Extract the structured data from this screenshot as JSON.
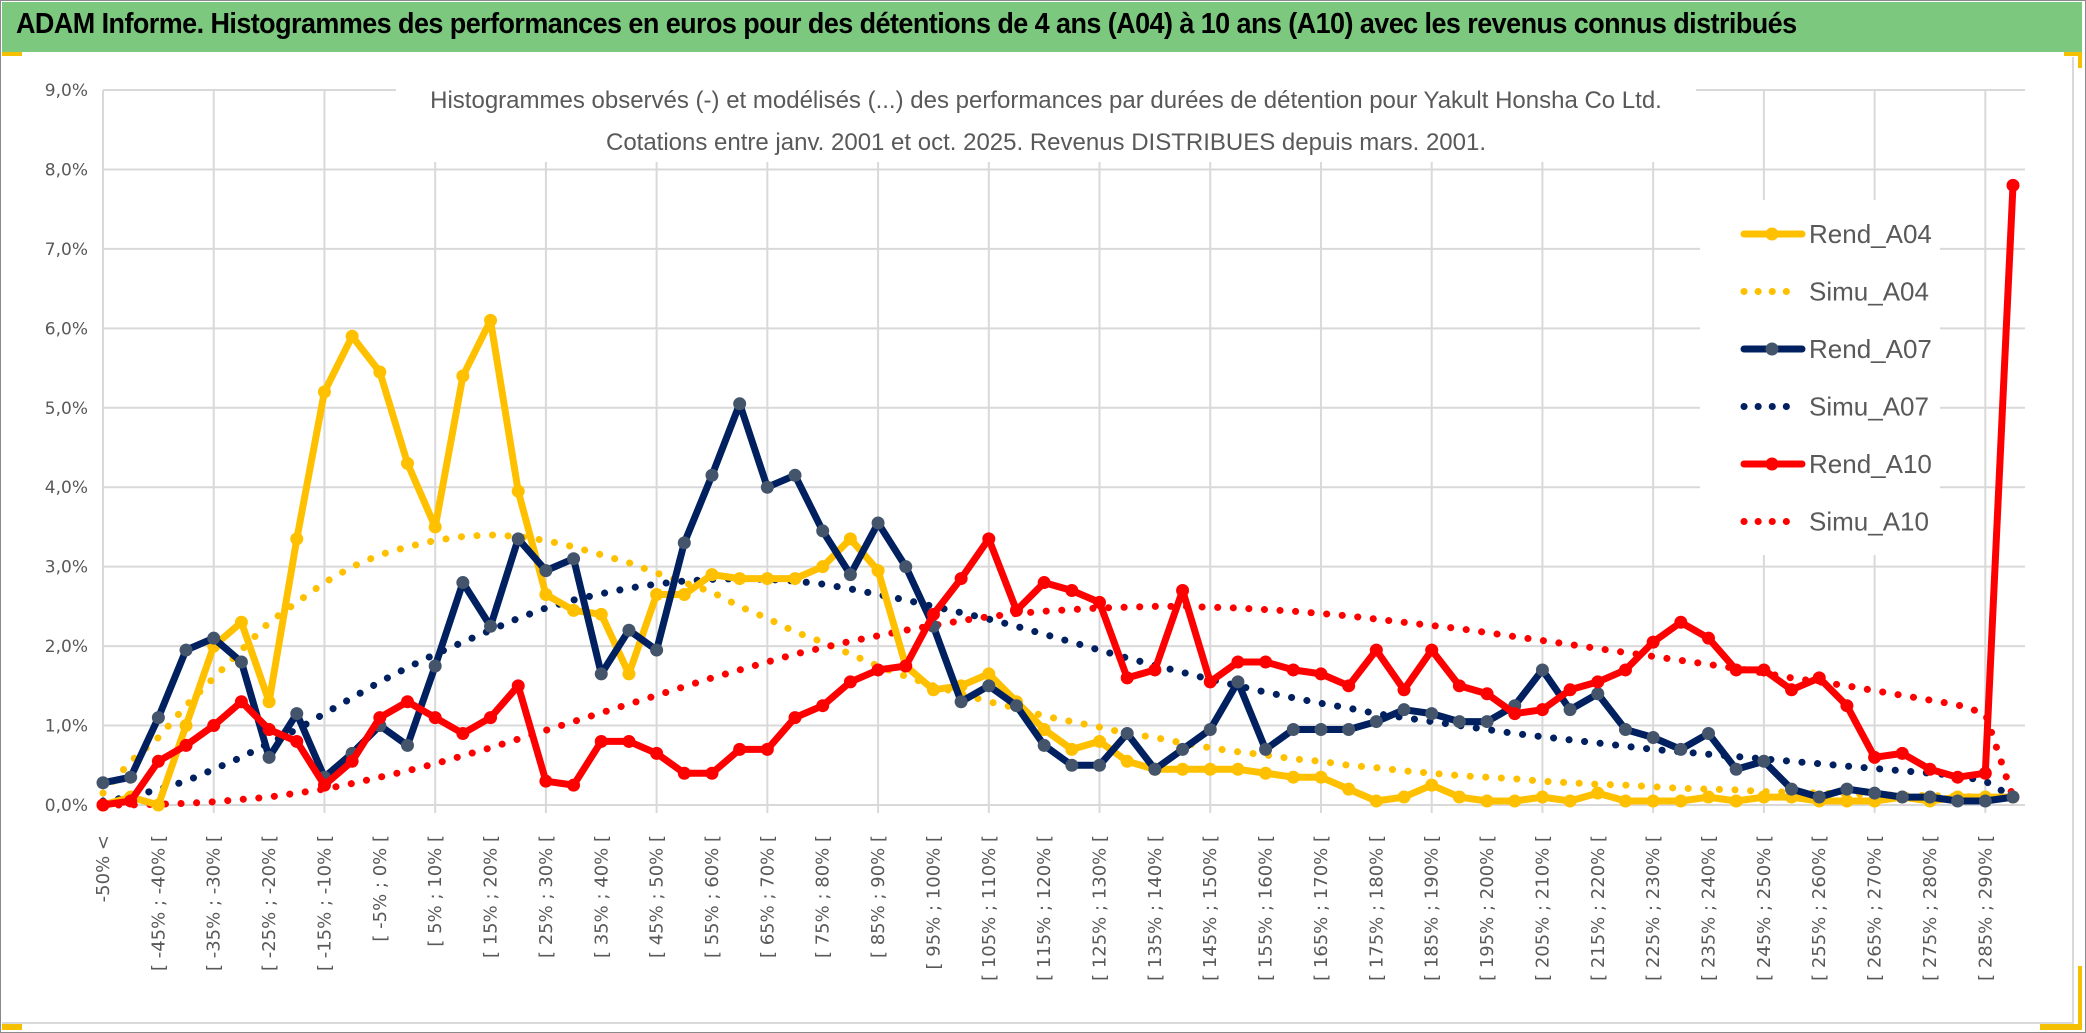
{
  "banner": {
    "title": "ADAM Informe. Histogrammes des performances en euros pour des détentions de 4 ans (A04) à 10 ans (A10) avec les revenus connus distribués"
  },
  "colors": {
    "banner_bg": "#7dc87f",
    "accent": "#f5c000",
    "a04": "#ffc000",
    "a07": "#002060",
    "a07_marker": "#44546a",
    "a10": "#ff0000",
    "grid": "#d9d9d9",
    "text": "#595959"
  },
  "chart_data": {
    "type": "line",
    "title": "Histogrammes observés (-) et modélisés (...) des performances par durées de détention pour Yakult Honsha Co Ltd.",
    "subtitle": "Cotations entre janv. 2001 et oct. 2025. Revenus DISTRIBUES depuis mars. 2001.",
    "xlabel": "",
    "ylabel": "",
    "ylim": [
      0,
      9
    ],
    "y_unit": "%",
    "yticks": [
      "0,0%",
      "1,0%",
      "2,0%",
      "3,0%",
      "4,0%",
      "5,0%",
      "6,0%",
      "7,0%",
      "8,0%",
      "9,0%"
    ],
    "grid": true,
    "legend_position": "right",
    "x_tick_labels": [
      "-50% <",
      "[ -45% ; -40% [",
      "[ -35% ; -30% [",
      "[ -25% ; -20% [",
      "[ -15% ; -10% [",
      "[ -5% ; 0% [",
      "[ 5% ; 10% [",
      "[ 15% ; 20% [",
      "[ 25% ; 30% [",
      "[ 35% ; 40% [",
      "[ 45% ; 50% [",
      "[ 55% ; 60% [",
      "[ 65% ; 70% [",
      "[ 75% ; 80% [",
      "[ 85% ; 90% [",
      "[ 95% ; 100% [",
      "[ 105% ; 110% [",
      "[ 115% ; 120% [",
      "[ 125% ; 130% [",
      "[ 135% ; 140% [",
      "[ 145% ; 150% [",
      "[ 155% ; 160% [",
      "[ 165% ; 170% [",
      "[ 175% ; 180% [",
      "[ 185% ; 190% [",
      "[ 195% ; 200% [",
      "[ 205% ; 210% [",
      "[ 215% ; 220% [",
      "[ 225% ; 230% [",
      "[ 235% ; 240% [",
      "[ 245% ; 250% [",
      "[ 255% ; 260% [",
      "[ 265% ; 270% [",
      "[ 275% ; 280% [",
      "[ 285% ; 290% ["
    ],
    "x_tick_every": 2,
    "n_points": 70,
    "series": [
      {
        "name": "Rend_A04",
        "style": "solid-marker",
        "color": "#ffc000",
        "values": [
          0.0,
          0.1,
          0.0,
          1.0,
          2.0,
          2.3,
          1.3,
          3.35,
          5.2,
          5.9,
          5.45,
          4.3,
          3.5,
          5.4,
          6.1,
          3.95,
          2.65,
          2.45,
          2.4,
          1.65,
          2.65,
          2.65,
          2.9,
          2.85,
          2.85,
          2.85,
          3.0,
          3.35,
          2.95,
          1.75,
          1.45,
          1.5,
          1.65,
          1.3,
          0.95,
          0.7,
          0.8,
          0.55,
          0.45,
          0.45,
          0.45,
          0.45,
          0.4,
          0.35,
          0.35,
          0.2,
          0.05,
          0.1,
          0.25,
          0.1,
          0.05,
          0.05,
          0.1,
          0.05,
          0.15,
          0.05,
          0.05,
          0.05,
          0.1,
          0.05,
          0.1,
          0.1,
          0.05,
          0.05,
          0.05,
          0.1,
          0.05,
          0.1,
          0.1,
          0.1
        ]
      },
      {
        "name": "Simu_A04",
        "style": "dotted",
        "color": "#ffc000",
        "values": [
          0.15,
          0.55,
          0.85,
          1.25,
          1.6,
          1.95,
          2.3,
          2.55,
          2.8,
          3.0,
          3.15,
          3.25,
          3.33,
          3.38,
          3.4,
          3.38,
          3.33,
          3.25,
          3.15,
          3.05,
          2.92,
          2.8,
          2.68,
          2.5,
          2.35,
          2.18,
          2.05,
          1.9,
          1.75,
          1.62,
          1.5,
          1.4,
          1.3,
          1.22,
          1.12,
          1.05,
          0.98,
          0.9,
          0.85,
          0.78,
          0.72,
          0.67,
          0.63,
          0.58,
          0.55,
          0.5,
          0.47,
          0.43,
          0.4,
          0.37,
          0.35,
          0.33,
          0.3,
          0.28,
          0.26,
          0.25,
          0.23,
          0.21,
          0.2,
          0.19,
          0.17,
          0.16,
          0.15,
          0.14,
          0.13,
          0.12,
          0.12,
          0.11,
          0.1,
          0.1
        ]
      },
      {
        "name": "Rend_A07",
        "style": "solid-marker",
        "color": "#002060",
        "values": [
          0.28,
          0.35,
          1.1,
          1.95,
          2.1,
          1.8,
          0.6,
          1.15,
          0.35,
          0.65,
          1.0,
          0.75,
          1.75,
          2.8,
          2.25,
          3.35,
          2.95,
          3.1,
          1.65,
          2.2,
          1.95,
          3.3,
          4.15,
          5.05,
          4.0,
          4.15,
          3.45,
          2.9,
          3.55,
          3.0,
          2.25,
          1.3,
          1.5,
          1.25,
          0.75,
          0.5,
          0.5,
          0.9,
          0.45,
          0.7,
          0.95,
          1.55,
          0.7,
          0.95,
          0.95,
          0.95,
          1.05,
          1.2,
          1.15,
          1.05,
          1.05,
          1.25,
          1.7,
          1.2,
          1.4,
          0.95,
          0.85,
          0.7,
          0.9,
          0.45,
          0.55,
          0.2,
          0.1,
          0.2,
          0.15,
          0.1,
          0.1,
          0.05,
          0.05,
          0.1
        ]
      },
      {
        "name": "Simu_A07",
        "style": "dotted",
        "color": "#002060",
        "values": [
          0.05,
          0.1,
          0.2,
          0.3,
          0.45,
          0.6,
          0.78,
          0.95,
          1.15,
          1.35,
          1.55,
          1.73,
          1.9,
          2.05,
          2.2,
          2.35,
          2.48,
          2.58,
          2.66,
          2.73,
          2.78,
          2.82,
          2.84,
          2.85,
          2.84,
          2.82,
          2.78,
          2.72,
          2.65,
          2.58,
          2.5,
          2.42,
          2.34,
          2.25,
          2.15,
          2.05,
          1.95,
          1.85,
          1.76,
          1.67,
          1.58,
          1.5,
          1.42,
          1.35,
          1.28,
          1.22,
          1.15,
          1.1,
          1.05,
          1.0,
          0.95,
          0.9,
          0.86,
          0.82,
          0.78,
          0.74,
          0.7,
          0.67,
          0.64,
          0.61,
          0.58,
          0.55,
          0.52,
          0.49,
          0.46,
          0.43,
          0.4,
          0.37,
          0.3,
          0.1
        ]
      },
      {
        "name": "Rend_A10",
        "style": "solid-marker",
        "color": "#ff0000",
        "values": [
          0.0,
          0.05,
          0.55,
          0.75,
          1.0,
          1.3,
          0.95,
          0.8,
          0.25,
          0.55,
          1.1,
          1.3,
          1.1,
          0.9,
          1.1,
          1.5,
          0.3,
          0.25,
          0.8,
          0.8,
          0.65,
          0.4,
          0.4,
          0.7,
          0.7,
          1.1,
          1.25,
          1.55,
          1.7,
          1.75,
          2.4,
          2.85,
          3.35,
          2.45,
          2.8,
          2.7,
          2.55,
          1.6,
          1.7,
          2.7,
          1.55,
          1.8,
          1.8,
          1.7,
          1.65,
          1.5,
          1.95,
          1.45,
          1.95,
          1.5,
          1.4,
          1.15,
          1.2,
          1.45,
          1.55,
          1.7,
          2.05,
          2.3,
          2.1,
          1.7,
          1.7,
          1.45,
          1.6,
          1.25,
          0.6,
          0.65,
          0.45,
          0.35,
          0.4,
          7.8
        ]
      },
      {
        "name": "Simu_A10",
        "style": "dotted",
        "color": "#ff0000",
        "values": [
          0.0,
          0.0,
          0.01,
          0.02,
          0.04,
          0.07,
          0.1,
          0.15,
          0.2,
          0.27,
          0.35,
          0.43,
          0.52,
          0.62,
          0.72,
          0.83,
          0.94,
          1.05,
          1.16,
          1.27,
          1.38,
          1.49,
          1.6,
          1.7,
          1.8,
          1.9,
          1.98,
          2.06,
          2.13,
          2.2,
          2.26,
          2.32,
          2.37,
          2.41,
          2.44,
          2.46,
          2.48,
          2.49,
          2.5,
          2.5,
          2.49,
          2.48,
          2.46,
          2.44,
          2.41,
          2.38,
          2.34,
          2.3,
          2.26,
          2.22,
          2.17,
          2.12,
          2.07,
          2.02,
          1.97,
          1.92,
          1.87,
          1.82,
          1.77,
          1.72,
          1.66,
          1.6,
          1.55,
          1.5,
          1.44,
          1.38,
          1.32,
          1.26,
          1.15,
          0.1
        ]
      }
    ]
  }
}
